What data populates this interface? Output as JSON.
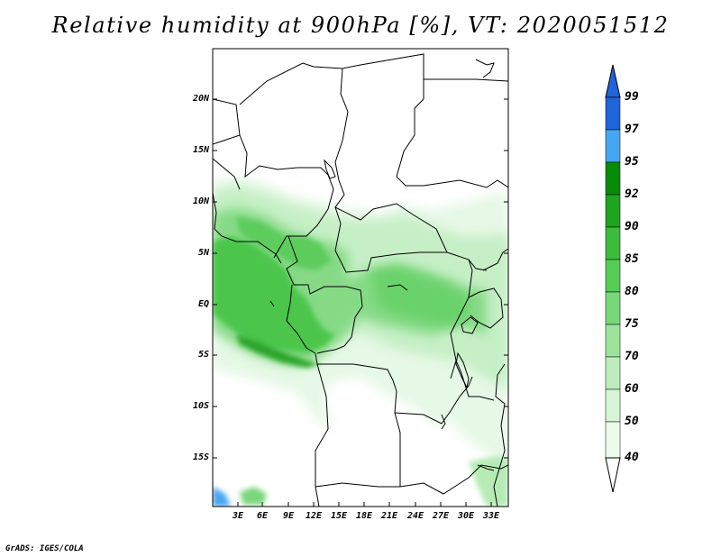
{
  "title": "Relative humidity at 900hPa [%], VT: 2020051512",
  "credit": "GrADS: IGES/COLA",
  "map": {
    "lat_labels": [
      "20N",
      "15N",
      "10N",
      "5N",
      "EQ",
      "5S",
      "10S",
      "15S"
    ],
    "lon_labels": [
      "3E",
      "6E",
      "9E",
      "12E",
      "15E",
      "18E",
      "21E",
      "24E",
      "27E",
      "30E",
      "33E"
    ]
  },
  "colorbar": {
    "labels": [
      "99",
      "97",
      "95",
      "92",
      "90",
      "85",
      "80",
      "75",
      "70",
      "60",
      "50",
      "40"
    ],
    "colors": [
      "#1f64d8",
      "#2a82e8",
      "#46a6f0",
      "#078c07",
      "#1ea41e",
      "#3cbc3c",
      "#55cc55",
      "#78d878",
      "#9ce39c",
      "#bdedbd",
      "#d6f5d6",
      "#ecfbec"
    ],
    "open_ends": "both"
  }
}
